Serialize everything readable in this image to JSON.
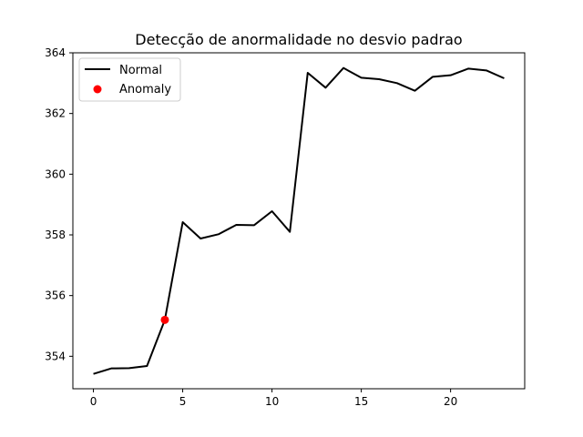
{
  "chart_data": {
    "type": "line",
    "title": "Detecção de anormalidade no desvio padrao",
    "xlabel": "",
    "ylabel": "",
    "xlim": [
      -1.15,
      24.15
    ],
    "ylim": [
      352.93,
      364.0
    ],
    "x_ticks": [
      0,
      5,
      10,
      15,
      20
    ],
    "y_ticks": [
      354,
      356,
      358,
      360,
      362,
      364
    ],
    "grid": false,
    "legend_position": "upper-left",
    "series": [
      {
        "name": "Normal",
        "style": "line",
        "color": "#000000",
        "x": [
          0,
          1,
          2,
          3,
          4,
          5,
          6,
          7,
          8,
          9,
          10,
          11,
          12,
          13,
          14,
          15,
          16,
          17,
          18,
          19,
          20,
          21,
          22,
          23
        ],
        "y": [
          353.42,
          353.6,
          353.61,
          353.68,
          355.2,
          358.42,
          357.88,
          358.02,
          358.33,
          358.32,
          358.78,
          358.1,
          363.34,
          362.85,
          363.5,
          363.18,
          363.13,
          363.0,
          362.75,
          363.21,
          363.26,
          363.48,
          363.42,
          363.16
        ]
      },
      {
        "name": "Anomaly",
        "style": "scatter",
        "color": "#ff0000",
        "x": [
          4
        ],
        "y": [
          355.2
        ]
      }
    ]
  }
}
